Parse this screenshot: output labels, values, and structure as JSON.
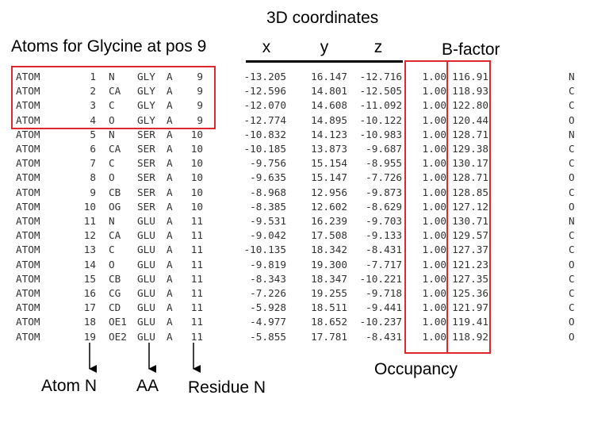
{
  "header": {
    "coords_title": "3D coordinates",
    "glycine_caption": "Atoms for Glycine at pos 9",
    "x_label": "x",
    "y_label": "y",
    "z_label": "z",
    "bfactor_label": "B-factor"
  },
  "footer": {
    "occupancy_label": "Occupancy",
    "atom_n_label": "Atom N",
    "aa_label": "AA",
    "residue_n_label": "Residue N"
  },
  "colors": {
    "highlight": "#e0262e",
    "text": "#333333"
  },
  "columns": [
    "record",
    "atom_n",
    "atom_name",
    "aa",
    "chain",
    "residue_n",
    "x",
    "y",
    "z",
    "occupancy",
    "b_factor",
    "element"
  ],
  "atoms": [
    {
      "record": "ATOM",
      "atom_n": "1",
      "atom_name": "N",
      "aa": "GLY",
      "chain": "A",
      "residue_n": "9",
      "x": "-13.205",
      "y": "16.147",
      "z": "-12.716",
      "occupancy": "1.00",
      "b_factor": "116.91",
      "element": "N"
    },
    {
      "record": "ATOM",
      "atom_n": "2",
      "atom_name": "CA",
      "aa": "GLY",
      "chain": "A",
      "residue_n": "9",
      "x": "-12.596",
      "y": "14.801",
      "z": "-12.505",
      "occupancy": "1.00",
      "b_factor": "118.93",
      "element": "C"
    },
    {
      "record": "ATOM",
      "atom_n": "3",
      "atom_name": "C",
      "aa": "GLY",
      "chain": "A",
      "residue_n": "9",
      "x": "-12.070",
      "y": "14.608",
      "z": "-11.092",
      "occupancy": "1.00",
      "b_factor": "122.80",
      "element": "C"
    },
    {
      "record": "ATOM",
      "atom_n": "4",
      "atom_name": "O",
      "aa": "GLY",
      "chain": "A",
      "residue_n": "9",
      "x": "-12.774",
      "y": "14.895",
      "z": "-10.122",
      "occupancy": "1.00",
      "b_factor": "120.44",
      "element": "O"
    },
    {
      "record": "ATOM",
      "atom_n": "5",
      "atom_name": "N",
      "aa": "SER",
      "chain": "A",
      "residue_n": "10",
      "x": "-10.832",
      "y": "14.123",
      "z": "-10.983",
      "occupancy": "1.00",
      "b_factor": "128.71",
      "element": "N"
    },
    {
      "record": "ATOM",
      "atom_n": "6",
      "atom_name": "CA",
      "aa": "SER",
      "chain": "A",
      "residue_n": "10",
      "x": "-10.185",
      "y": "13.873",
      "z": "-9.687",
      "occupancy": "1.00",
      "b_factor": "129.38",
      "element": "C"
    },
    {
      "record": "ATOM",
      "atom_n": "7",
      "atom_name": "C",
      "aa": "SER",
      "chain": "A",
      "residue_n": "10",
      "x": "-9.756",
      "y": "15.154",
      "z": "-8.955",
      "occupancy": "1.00",
      "b_factor": "130.17",
      "element": "C"
    },
    {
      "record": "ATOM",
      "atom_n": "8",
      "atom_name": "O",
      "aa": "SER",
      "chain": "A",
      "residue_n": "10",
      "x": "-9.635",
      "y": "15.147",
      "z": "-7.726",
      "occupancy": "1.00",
      "b_factor": "128.71",
      "element": "O"
    },
    {
      "record": "ATOM",
      "atom_n": "9",
      "atom_name": "CB",
      "aa": "SER",
      "chain": "A",
      "residue_n": "10",
      "x": "-8.968",
      "y": "12.956",
      "z": "-9.873",
      "occupancy": "1.00",
      "b_factor": "128.85",
      "element": "C"
    },
    {
      "record": "ATOM",
      "atom_n": "10",
      "atom_name": "OG",
      "aa": "SER",
      "chain": "A",
      "residue_n": "10",
      "x": "-8.385",
      "y": "12.602",
      "z": "-8.629",
      "occupancy": "1.00",
      "b_factor": "127.12",
      "element": "O"
    },
    {
      "record": "ATOM",
      "atom_n": "11",
      "atom_name": "N",
      "aa": "GLU",
      "chain": "A",
      "residue_n": "11",
      "x": "-9.531",
      "y": "16.239",
      "z": "-9.703",
      "occupancy": "1.00",
      "b_factor": "130.71",
      "element": "N"
    },
    {
      "record": "ATOM",
      "atom_n": "12",
      "atom_name": "CA",
      "aa": "GLU",
      "chain": "A",
      "residue_n": "11",
      "x": "-9.042",
      "y": "17.508",
      "z": "-9.133",
      "occupancy": "1.00",
      "b_factor": "129.57",
      "element": "C"
    },
    {
      "record": "ATOM",
      "atom_n": "13",
      "atom_name": "C",
      "aa": "GLU",
      "chain": "A",
      "residue_n": "11",
      "x": "-10.135",
      "y": "18.342",
      "z": "-8.431",
      "occupancy": "1.00",
      "b_factor": "127.37",
      "element": "C"
    },
    {
      "record": "ATOM",
      "atom_n": "14",
      "atom_name": "O",
      "aa": "GLU",
      "chain": "A",
      "residue_n": "11",
      "x": "-9.819",
      "y": "19.300",
      "z": "-7.717",
      "occupancy": "1.00",
      "b_factor": "121.23",
      "element": "O"
    },
    {
      "record": "ATOM",
      "atom_n": "15",
      "atom_name": "CB",
      "aa": "GLU",
      "chain": "A",
      "residue_n": "11",
      "x": "-8.343",
      "y": "18.347",
      "z": "-10.221",
      "occupancy": "1.00",
      "b_factor": "127.35",
      "element": "C"
    },
    {
      "record": "ATOM",
      "atom_n": "16",
      "atom_name": "CG",
      "aa": "GLU",
      "chain": "A",
      "residue_n": "11",
      "x": "-7.226",
      "y": "19.255",
      "z": "-9.718",
      "occupancy": "1.00",
      "b_factor": "125.36",
      "element": "C"
    },
    {
      "record": "ATOM",
      "atom_n": "17",
      "atom_name": "CD",
      "aa": "GLU",
      "chain": "A",
      "residue_n": "11",
      "x": "-5.928",
      "y": "18.511",
      "z": "-9.441",
      "occupancy": "1.00",
      "b_factor": "121.97",
      "element": "C"
    },
    {
      "record": "ATOM",
      "atom_n": "18",
      "atom_name": "OE1",
      "aa": "GLU",
      "chain": "A",
      "residue_n": "11",
      "x": "-4.977",
      "y": "18.652",
      "z": "-10.237",
      "occupancy": "1.00",
      "b_factor": "119.41",
      "element": "O"
    },
    {
      "record": "ATOM",
      "atom_n": "19",
      "atom_name": "OE2",
      "aa": "GLU",
      "chain": "A",
      "residue_n": "11",
      "x": "-5.855",
      "y": "17.781",
      "z": "-8.431",
      "occupancy": "1.00",
      "b_factor": "118.92",
      "element": "O"
    }
  ]
}
